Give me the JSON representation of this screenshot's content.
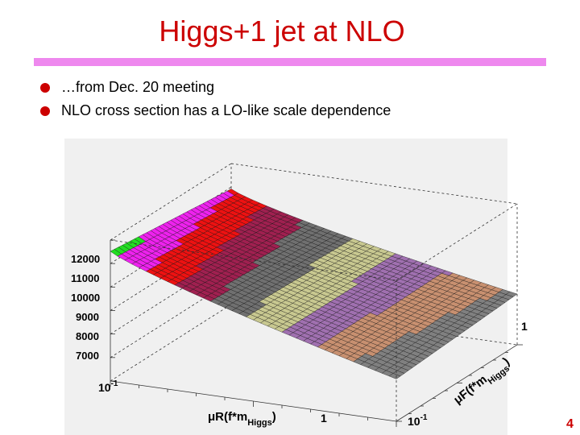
{
  "slide": {
    "title": "Higgs+1 jet at NLO",
    "bullets": [
      "…from Dec. 20 meeting",
      "NLO cross section has a LO-like scale dependence"
    ],
    "page_number": "4",
    "colors": {
      "title": "#cc0000",
      "rule": "#ee88ee",
      "bullet": "#cc0000"
    }
  },
  "chart_data": {
    "type": "surface",
    "z_axis": {
      "ticks": [
        12000,
        11000,
        10000,
        9000,
        8000,
        7000
      ]
    },
    "x_axis": {
      "label_main": "μR(f*m",
      "label_sub": "Higgs",
      "label_close": ")",
      "ticks": [
        {
          "mant": "10",
          "exp": "-1"
        },
        {
          "mant": "1",
          "exp": ""
        }
      ]
    },
    "y_axis": {
      "label_main": "μF(f*m",
      "label_sub": "Higgs",
      "label_close": ")",
      "ticks": [
        {
          "mant": "10",
          "exp": "-1"
        },
        {
          "mant": "1",
          "exp": ""
        }
      ]
    },
    "color_bands": [
      "#22dd22",
      "#ee22ee",
      "#ee1111",
      "#a02050",
      "#707070",
      "#c8c890",
      "#a070b0",
      "#c89070",
      "#808080",
      "#c0c0c0",
      "#e0b0b0",
      "#7a7a7a"
    ]
  }
}
